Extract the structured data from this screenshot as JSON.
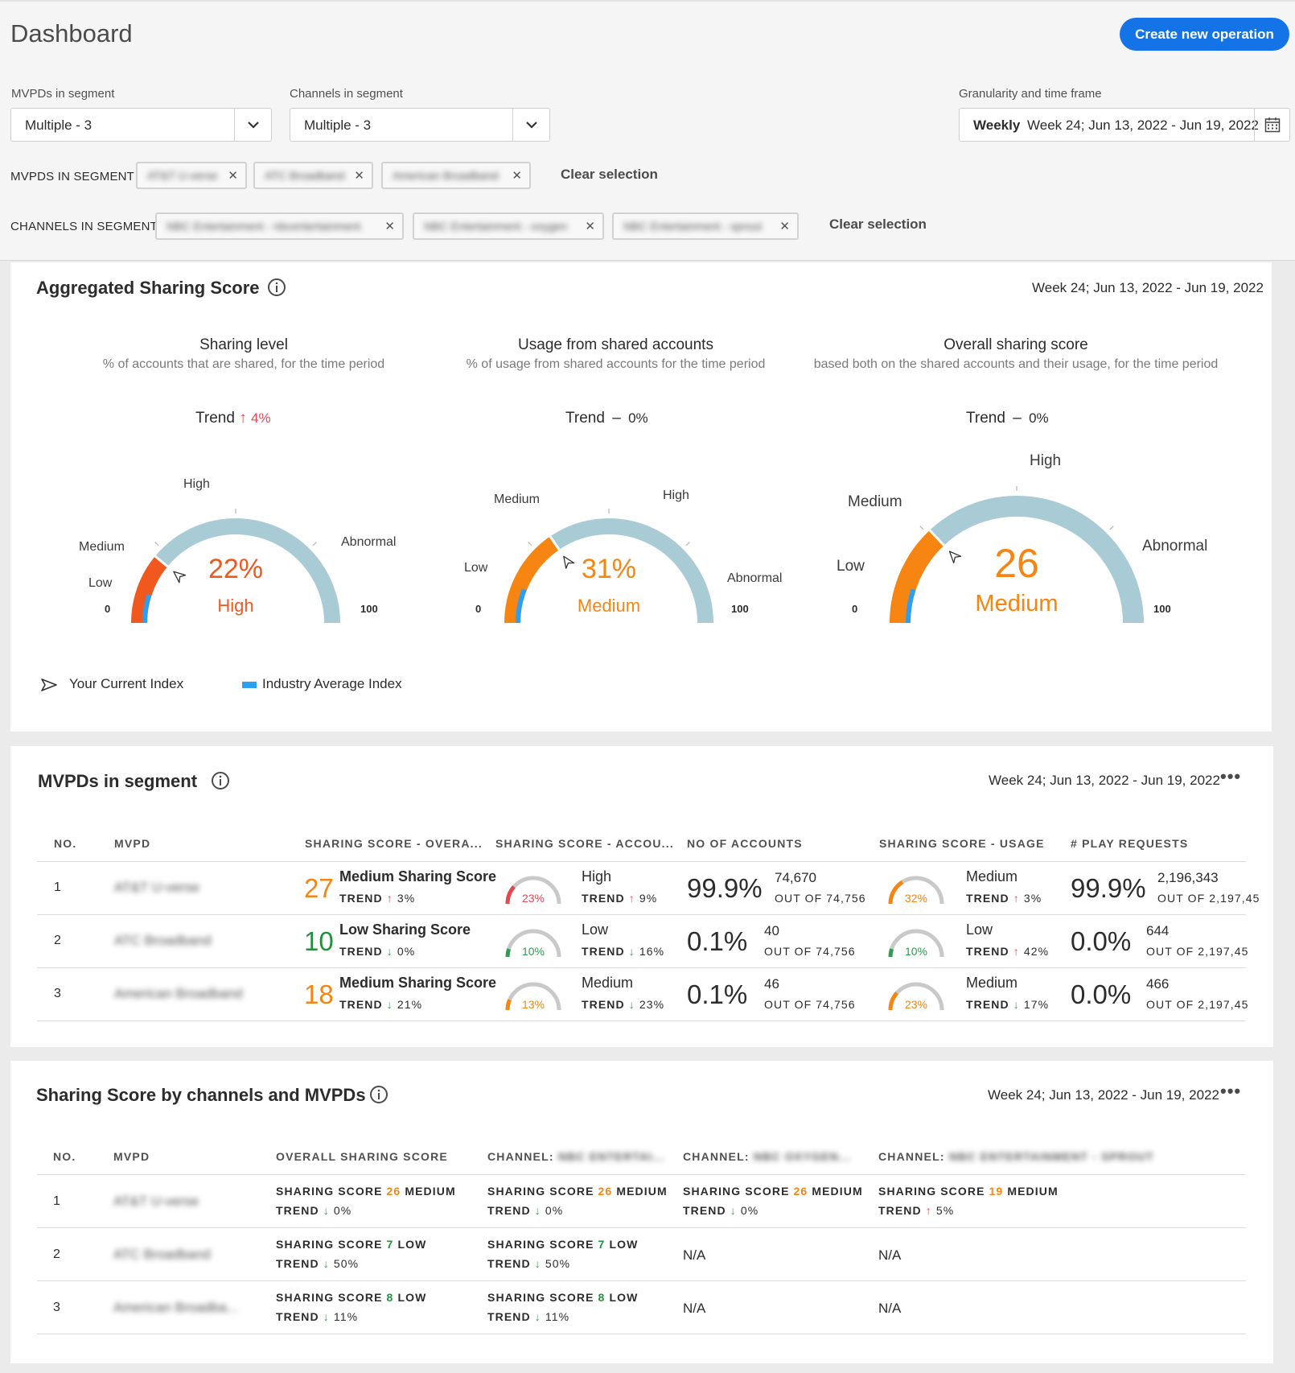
{
  "header": {
    "title": "Dashboard",
    "create_button": "Create new operation",
    "mvpd_select": {
      "label": "MVPDs in segment",
      "value": "Multiple - 3"
    },
    "channel_select": {
      "label": "Channels in segment",
      "value": "Multiple - 3"
    },
    "timeframe": {
      "label": "Granularity and time frame",
      "granularity": "Weekly",
      "range": "Week 24; Jun 13, 2022 - Jun 19, 2022"
    },
    "mvpd_segment": {
      "label": "MVPDS IN SEGMENT",
      "chips": [
        "AT&T U-verse",
        "ATC Broadband",
        "American Broadband"
      ],
      "clear": "Clear selection"
    },
    "channel_segment": {
      "label": "CHANNELS IN SEGMENT",
      "chips": [
        "NBC Entertainment - nbcentertainment",
        "NBC Entertainment - oxygen",
        "NBC Entertainment - sprout"
      ],
      "clear": "Clear selection"
    }
  },
  "aggregated": {
    "title": "Aggregated Sharing Score",
    "date": "Week 24; Jun 13, 2022 - Jun 19, 2022",
    "legend": {
      "current": "Your Current Index",
      "industry": "Industry Average Index"
    },
    "gauges": [
      {
        "title": "Sharing level",
        "subtitle": "% of accounts that are shared, for the time period",
        "trend_label": "Trend",
        "trend_arrow": "↑",
        "trend_value": "4%",
        "value": "22%",
        "level": "High",
        "min": "0",
        "max": "100",
        "labels": {
          "low": "Low",
          "medium": "Medium",
          "high": "High",
          "abnormal": "Abnormal"
        },
        "current_fraction": 0.22,
        "industry_fraction": 0.1,
        "color": "#f0581d"
      },
      {
        "title": "Usage from shared accounts",
        "subtitle": "% of usage from shared accounts for the time period",
        "trend_label": "Trend",
        "trend_arrow": "–",
        "trend_value": "0%",
        "value": "31%",
        "level": "Medium",
        "min": "0",
        "max": "100",
        "labels": {
          "low": "Low",
          "medium": "Medium",
          "high": "High",
          "abnormal": "Abnormal"
        },
        "current_fraction": 0.31,
        "industry_fraction": 0.12,
        "color": "#f68511"
      },
      {
        "title": "Overall sharing score",
        "subtitle": "based both on the shared accounts and their usage, for the time period",
        "trend_label": "Trend",
        "trend_arrow": "–",
        "trend_value": "0%",
        "value": "26",
        "level": "Medium",
        "min": "0",
        "max": "100",
        "labels": {
          "low": "Low",
          "medium": "Medium",
          "high": "High",
          "abnormal": "Abnormal"
        },
        "current_fraction": 0.26,
        "industry_fraction": 0.1,
        "color": "#f68511"
      }
    ]
  },
  "mvpds": {
    "title": "MVPDs in segment",
    "date": "Week 24; Jun 13, 2022 - Jun 19, 2022",
    "more": "•••",
    "headers": [
      "NO.",
      "MVPD",
      "SHARING SCORE - OVERA...",
      "SHARING SCORE - ACCOU...",
      "NO OF ACCOUNTS",
      "SHARING SCORE - USAGE",
      "# PLAY REQUESTS"
    ],
    "trend_label": "TREND",
    "rows": [
      {
        "no": "1",
        "mvpd": "AT&T U-verse",
        "score": "27",
        "score_label": "Medium Sharing Score",
        "score_trend_arrow": "↑",
        "score_trend": "3%",
        "acc_pct": "23%",
        "acc_level": "High",
        "acc_trend_arrow": "↑",
        "acc_trend": "9%",
        "acc_share": "99.9%",
        "acc_count": "74,670",
        "acc_out": "OUT OF 74,756",
        "use_pct": "32%",
        "use_level": "Medium",
        "use_trend_arrow": "↑",
        "use_trend": "3%",
        "req_share": "99.9%",
        "req_count": "2,196,343",
        "req_out": "OUT OF 2,197,45"
      },
      {
        "no": "2",
        "mvpd": "ATC Broadband",
        "score": "10",
        "score_label": "Low Sharing Score",
        "score_trend_arrow": "↓",
        "score_trend": "0%",
        "acc_pct": "10%",
        "acc_level": "Low",
        "acc_trend_arrow": "↓",
        "acc_trend": "16%",
        "acc_share": "0.1%",
        "acc_count": "40",
        "acc_out": "OUT OF 74,756",
        "use_pct": "10%",
        "use_level": "Low",
        "use_trend_arrow": "↑",
        "use_trend": "42%",
        "req_share": "0.0%",
        "req_count": "644",
        "req_out": "OUT OF 2,197,45"
      },
      {
        "no": "3",
        "mvpd": "American Broadband",
        "score": "18",
        "score_label": "Medium Sharing Score",
        "score_trend_arrow": "↓",
        "score_trend": "21%",
        "acc_pct": "13%",
        "acc_level": "Medium",
        "acc_trend_arrow": "↓",
        "acc_trend": "23%",
        "acc_share": "0.1%",
        "acc_count": "46",
        "acc_out": "OUT OF 74,756",
        "use_pct": "23%",
        "use_level": "Medium",
        "use_trend_arrow": "↓",
        "use_trend": "17%",
        "req_share": "0.0%",
        "req_count": "466",
        "req_out": "OUT OF 2,197,45"
      }
    ]
  },
  "channels": {
    "title": "Sharing Score by channels and MVPDs",
    "date": "Week 24; Jun 13, 2022 - Jun 19, 2022",
    "more": "•••",
    "headers": [
      "NO.",
      "MVPD",
      "OVERALL SHARING SCORE",
      "CHANNEL:",
      "CHANNEL:",
      "CHANNEL:"
    ],
    "channel_names": [
      "NBC ENTERTAI...",
      "NBC OXYGEN...",
      "NBC ENTERTAINMENT - SPROUT"
    ],
    "score_label": "SHARING SCORE",
    "trend_label": "TREND",
    "rows": [
      {
        "no": "1",
        "mvpd": "AT&T U-verse",
        "cells": [
          {
            "score": "26",
            "level": "MEDIUM",
            "arrow": "↓",
            "trend": "0%"
          },
          {
            "score": "26",
            "level": "MEDIUM",
            "arrow": "↓",
            "trend": "0%"
          },
          {
            "score": "26",
            "level": "MEDIUM",
            "arrow": "↓",
            "trend": "0%"
          },
          {
            "score": "19",
            "level": "MEDIUM",
            "arrow": "↑",
            "trend": "5%"
          }
        ]
      },
      {
        "no": "2",
        "mvpd": "ATC Broadband",
        "cells": [
          {
            "score": "7",
            "level": "LOW",
            "arrow": "↓",
            "trend": "50%"
          },
          {
            "score": "7",
            "level": "LOW",
            "arrow": "↓",
            "trend": "50%"
          },
          {
            "na": "N/A"
          },
          {
            "na": "N/A"
          }
        ]
      },
      {
        "no": "3",
        "mvpd": "American Broadba...",
        "cells": [
          {
            "score": "8",
            "level": "LOW",
            "arrow": "↓",
            "trend": "11%"
          },
          {
            "score": "8",
            "level": "LOW",
            "arrow": "↓",
            "trend": "11%"
          },
          {
            "na": "N/A"
          },
          {
            "na": "N/A"
          }
        ]
      }
    ]
  }
}
